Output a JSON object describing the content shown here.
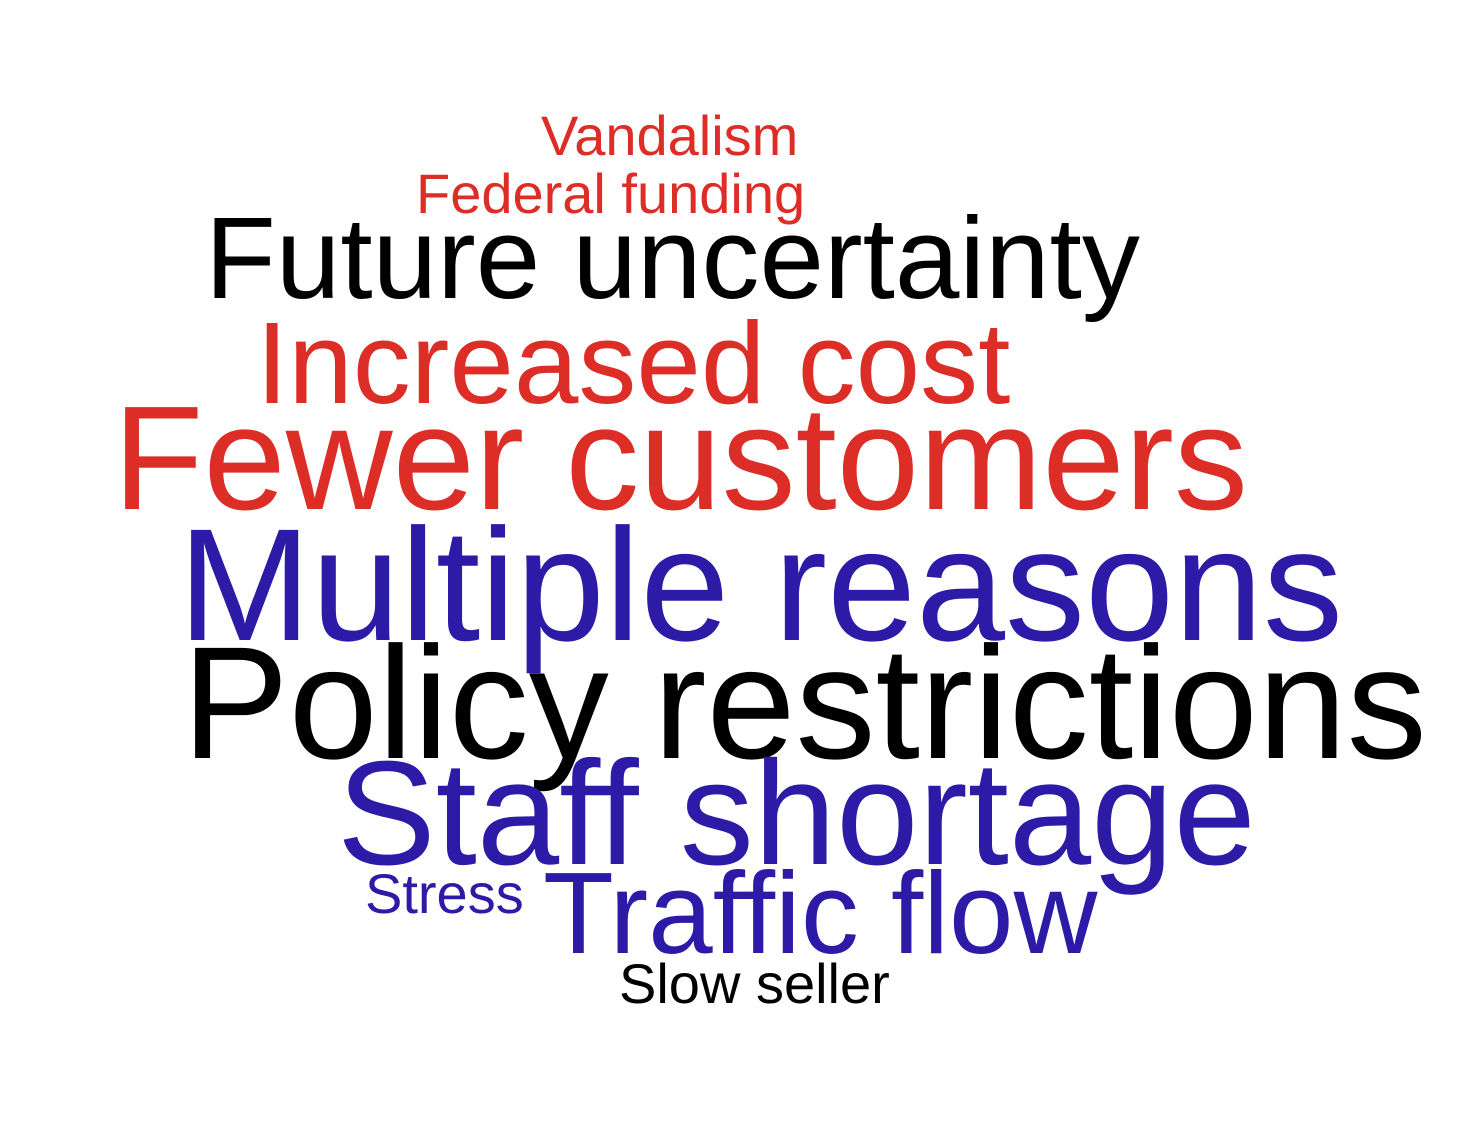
{
  "colors": {
    "red": "#dd2d27",
    "black": "#000000",
    "blue": "#2d1aa6",
    "background": "#ffffff"
  },
  "words": {
    "vandalism": {
      "text": "Vandalism",
      "color": "#dd2d27"
    },
    "federal_funding": {
      "text": "Federal funding",
      "color": "#dd2d27"
    },
    "future_uncertainty": {
      "text": "Future uncertainty",
      "color": "#000000"
    },
    "increased_cost": {
      "text": "Increased cost",
      "color": "#dd2d27"
    },
    "fewer_customers": {
      "text": "Fewer customers",
      "color": "#dd2d27"
    },
    "multiple_reasons": {
      "text": "Multiple reasons",
      "color": "#2d1aa6"
    },
    "policy_restrictions": {
      "text": "Policy restrictions",
      "color": "#000000"
    },
    "staff_shortage": {
      "text": "Staff shortage",
      "color": "#2d1aa6"
    },
    "stress": {
      "text": "Stress",
      "color": "#2d1aa6"
    },
    "traffic_flow": {
      "text": "Traffic flow",
      "color": "#2d1aa6"
    },
    "slow_seller": {
      "text": "Slow seller",
      "color": "#000000"
    }
  }
}
